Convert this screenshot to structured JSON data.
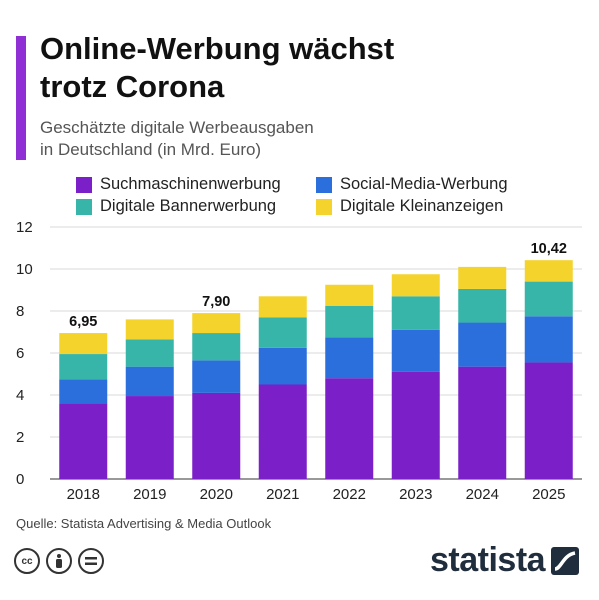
{
  "header": {
    "title_line1": "Online-Werbung wächst",
    "title_line2": "trotz Corona",
    "subtitle_line1": "Geschätzte digitale Werbeausgaben",
    "subtitle_line2": "in Deutschland (in Mrd. Euro)"
  },
  "legend": [
    {
      "label": "Suchmaschinenwerbung",
      "color": "#7b1fc8"
    },
    {
      "label": "Social-Media-Werbung",
      "color": "#2a6fdb"
    },
    {
      "label": "Digitale Bannerwerbung",
      "color": "#36b5a8"
    },
    {
      "label": "Digitale Kleinanzeigen",
      "color": "#f4d32d"
    }
  ],
  "chart_data": {
    "type": "bar",
    "stacked": true,
    "categories": [
      "2018",
      "2019",
      "2020",
      "2021",
      "2022",
      "2023",
      "2024",
      "2025"
    ],
    "series": [
      {
        "name": "Suchmaschinenwerbung",
        "color": "#7b1fc8",
        "values": [
          3.6,
          3.95,
          4.1,
          4.5,
          4.8,
          5.1,
          5.35,
          5.55
        ]
      },
      {
        "name": "Social-Media-Werbung",
        "color": "#2a6fdb",
        "values": [
          1.15,
          1.4,
          1.55,
          1.75,
          1.95,
          2.0,
          2.1,
          2.2
        ]
      },
      {
        "name": "Digitale Bannerwerbung",
        "color": "#36b5a8",
        "values": [
          1.2,
          1.3,
          1.3,
          1.45,
          1.5,
          1.6,
          1.6,
          1.65
        ]
      },
      {
        "name": "Digitale Kleinanzeigen",
        "color": "#f4d32d",
        "values": [
          1.0,
          0.95,
          0.95,
          1.0,
          1.0,
          1.05,
          1.05,
          1.02
        ]
      }
    ],
    "totals_labels": [
      {
        "index": 0,
        "text": "6,95"
      },
      {
        "index": 2,
        "text": "7,90"
      },
      {
        "index": 7,
        "text": "10,42"
      }
    ],
    "ylim": [
      0,
      12
    ],
    "yticks": [
      0,
      2,
      4,
      6,
      8,
      10,
      12
    ],
    "grid": true,
    "legend_position": "top"
  },
  "footer": {
    "source": "Quelle: Statista Advertising & Media Outlook",
    "brand": "statista",
    "license_icons": [
      "cc-icon",
      "attribution-icon",
      "no-derivatives-icon"
    ]
  }
}
